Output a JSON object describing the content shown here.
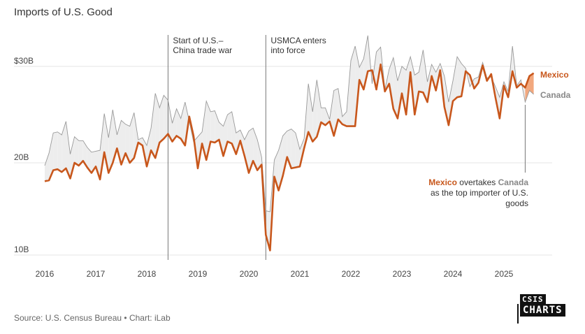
{
  "title": "Imports of U.S. Good",
  "source": "Source: U.S. Census Bureau • Chart: iLab",
  "logo": {
    "line1": "CSIS",
    "line2": "CHARTS"
  },
  "colors": {
    "mexico": "#c8571c",
    "canada": "#999999",
    "gap_fill": "#ededed",
    "gap_fill_mexico_lead": "#f2a87e"
  },
  "chart_data": {
    "type": "line",
    "xlabel": "",
    "ylabel": "",
    "x_ticks": [
      "2016",
      "2017",
      "2018",
      "2019",
      "2020",
      "2021",
      "2022",
      "2023",
      "2024",
      "2025"
    ],
    "y_ticks": [
      {
        "value": 10,
        "label": "10B"
      },
      {
        "value": 20,
        "label": "20B"
      },
      {
        "value": 30,
        "label": "$30B"
      }
    ],
    "ylim": [
      10,
      33
    ],
    "xlim": [
      "2016-01",
      "2025-08"
    ],
    "grid": "horizontal",
    "start": "2016-01",
    "series": [
      {
        "name": "Mexico",
        "color": "#c8571c",
        "values": [
          18.0,
          18.1,
          19.2,
          19.3,
          19.0,
          19.4,
          18.3,
          20.0,
          19.7,
          20.2,
          19.5,
          18.9,
          19.6,
          18.2,
          21.1,
          18.9,
          20.0,
          21.5,
          19.8,
          21.0,
          20.0,
          20.5,
          22.1,
          21.8,
          19.6,
          21.3,
          20.5,
          22.1,
          22.5,
          23.0,
          22.2,
          22.8,
          22.5,
          21.8,
          24.8,
          22.8,
          19.4,
          22.0,
          20.3,
          22.2,
          22.1,
          22.4,
          20.7,
          22.2,
          22.0,
          20.9,
          22.3,
          20.7,
          18.9,
          20.2,
          19.2,
          19.8,
          12.2,
          10.5,
          18.5,
          17.0,
          18.6,
          20.6,
          19.4,
          19.5,
          19.6,
          21.5,
          23.2,
          22.2,
          22.7,
          24.2,
          23.9,
          24.3,
          22.8,
          24.5,
          24.0,
          23.8,
          23.8,
          23.8,
          28.6,
          27.6,
          29.5,
          29.6,
          27.6,
          30.2,
          27.4,
          28.2,
          25.6,
          24.6,
          27.2,
          25.0,
          29.4,
          25.0,
          27.4,
          27.3,
          26.3,
          29.0,
          27.5,
          29.6,
          25.8,
          23.9,
          26.4,
          26.8,
          26.9,
          29.5,
          29.1,
          27.7,
          28.3,
          30.1,
          28.5,
          29.2,
          26.8,
          24.6,
          28.0,
          26.8,
          29.5,
          27.8,
          28.2,
          27.8,
          29.0,
          29.3
        ]
      },
      {
        "name": "Canada",
        "color": "#999999",
        "values": [
          19.7,
          21.0,
          23.1,
          23.2,
          22.9,
          24.3,
          20.9,
          22.7,
          22.3,
          22.3,
          21.6,
          21.1,
          21.2,
          21.3,
          25.1,
          22.6,
          25.5,
          22.9,
          24.4,
          24.0,
          23.8,
          25.2,
          22.4,
          22.6,
          21.8,
          23.6,
          27.2,
          25.7,
          27.0,
          26.5,
          24.1,
          25.6,
          24.6,
          26.3,
          24.3,
          22.2,
          22.7,
          23.2,
          26.4,
          25.3,
          25.4,
          24.2,
          23.8,
          25.0,
          25.3,
          23.1,
          23.4,
          22.4,
          23.3,
          23.6,
          22.4,
          20.6,
          14.8,
          14.7,
          20.3,
          21.3,
          22.8,
          23.3,
          23.5,
          23.1,
          21.4,
          22.5,
          28.2,
          25.3,
          28.6,
          25.7,
          25.7,
          24.5,
          27.5,
          27.7,
          24.8,
          25.3,
          30.6,
          32.1,
          29.9,
          30.8,
          33.2,
          28.2,
          31.5,
          32.0,
          27.6,
          29.7,
          30.9,
          28.5,
          30.0,
          29.6,
          31.0,
          29.1,
          29.4,
          31.7,
          28.4,
          30.2,
          29.4,
          30.3,
          29.0,
          26.3,
          28.5,
          31.0,
          30.3,
          29.8,
          27.9,
          28.7,
          28.9,
          30.4,
          28.8,
          28.9,
          27.9,
          26.8,
          28.4,
          27.4,
          32.1,
          28.0,
          28.6,
          26.3,
          27.5,
          27.1
        ]
      }
    ],
    "events": [
      {
        "date": "2018-06",
        "label_lines": [
          "Start of U.S.–",
          "China trade war"
        ]
      },
      {
        "date": "2020-05",
        "label_lines": [
          "USMCA enters",
          "into force"
        ]
      }
    ],
    "legend": [
      "Mexico",
      "Canada"
    ],
    "legend_placement": "right",
    "annotation": {
      "date": "2025-06",
      "mexico_word": "Mexico",
      "mid_word": " overtakes ",
      "canada_word": "Canada",
      "line1_tail": "",
      "line2": "as the top importer of U.S.",
      "line3": "goods"
    }
  }
}
